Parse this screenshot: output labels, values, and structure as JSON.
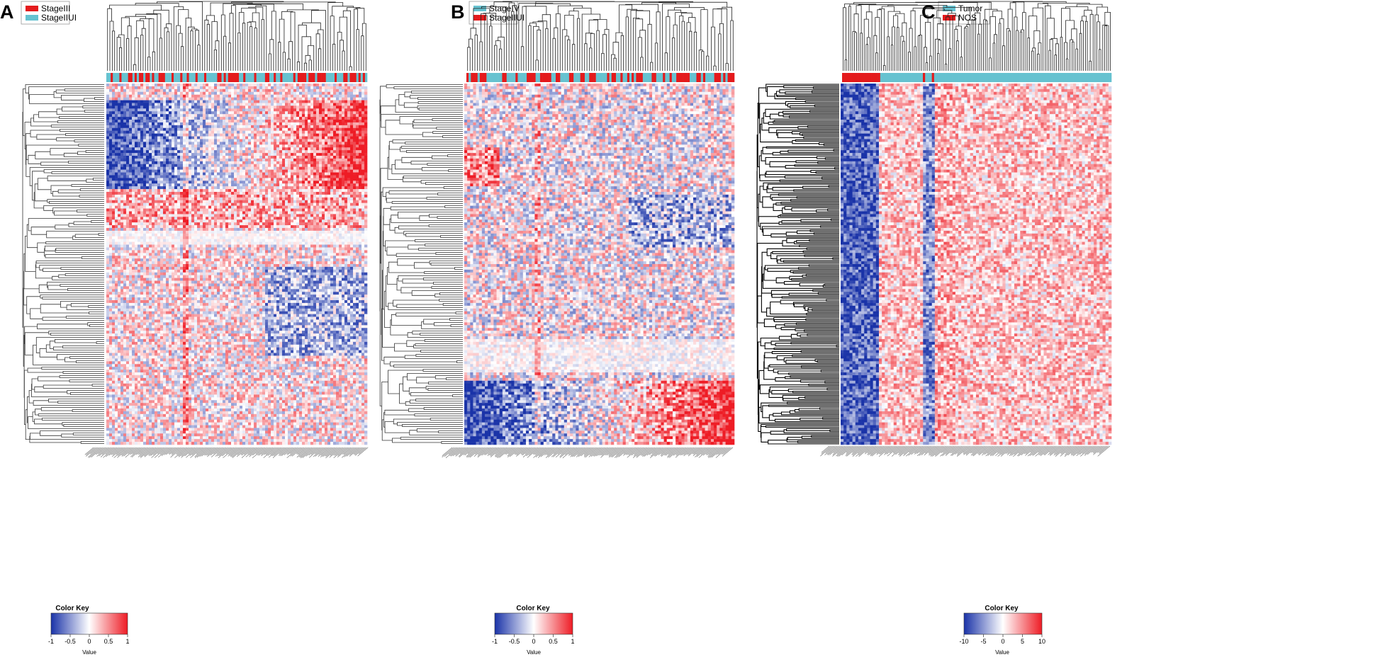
{
  "chart_data": [
    {
      "type": "heatmap",
      "panel": "A",
      "legend": [
        {
          "label": "StageIII",
          "color": "#e41a1c"
        },
        {
          "label": "StageIIUI",
          "color": "#66c2d0"
        }
      ],
      "column_annotation": {
        "pattern": "mixed",
        "colors": [
          "#e41a1c",
          "#66c2d0"
        ]
      },
      "color_key": {
        "title": "Color Key",
        "label": "Value",
        "ticks": [
          "-1",
          "-0.5",
          "0",
          "0.5",
          "1"
        ],
        "range": [
          -1,
          1
        ],
        "low_color": "#1a33a8",
        "mid_color": "#ffffff",
        "high_color": "#ee1c25"
      },
      "dendrogram": {
        "row": true,
        "column": true
      },
      "row_labels_visible": false,
      "column_labels_visible": false
    },
    {
      "type": "heatmap",
      "panel": "B",
      "legend": [
        {
          "label": "StageIV",
          "color": "#66c2d0"
        },
        {
          "label": "StageIIUI",
          "color": "#e41a1c"
        }
      ],
      "column_annotation": {
        "pattern": "mixed",
        "colors": [
          "#66c2d0",
          "#e41a1c"
        ]
      },
      "color_key": {
        "title": "Color Key",
        "label": "Value",
        "ticks": [
          "-1",
          "-0.5",
          "0",
          "0.5",
          "1"
        ],
        "range": [
          -1,
          1
        ],
        "low_color": "#1a33a8",
        "mid_color": "#ffffff",
        "high_color": "#ee1c25"
      },
      "dendrogram": {
        "row": true,
        "column": true
      },
      "row_labels_visible": false,
      "column_labels_visible": false
    },
    {
      "type": "heatmap",
      "panel": "C",
      "legend": [
        {
          "label": "Tumor",
          "color": "#66c2d0"
        },
        {
          "label": "NOS",
          "color": "#e41a1c"
        }
      ],
      "column_annotation": {
        "pattern": "block",
        "colors": [
          "#e41a1c",
          "#66c2d0"
        ]
      },
      "color_key": {
        "title": "Color Key",
        "label": "Value",
        "ticks": [
          "-10",
          "-5",
          "0",
          "5",
          "10"
        ],
        "range": [
          -10,
          10
        ],
        "low_color": "#1a33a8",
        "mid_color": "#ffffff",
        "high_color": "#ee1c25"
      },
      "dendrogram": {
        "row": true,
        "column": true
      },
      "row_labels_visible": false,
      "column_labels_visible": false
    }
  ]
}
